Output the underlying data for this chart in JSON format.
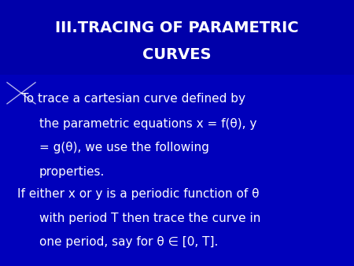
{
  "title_line1": "III.TRACING OF PARAMETRIC",
  "title_line2": "CURVES",
  "body_text1_line1": "To trace a cartesian curve defined by",
  "body_text1_line2": "the parametric equations x = f(θ), y",
  "body_text1_line3": "= g(θ), we use the following",
  "body_text1_line4": "properties.",
  "body_text2_line1": "If either x or y is a periodic function of θ",
  "body_text2_line2": "with period T then trace the curve in",
  "body_text2_line3": "one period, say for θ ∈ [0, T].",
  "bg_color_top": "#0000aa",
  "bg_color_bottom": "#0000cc",
  "bg_gradient_top": "#1010cc",
  "bg_gradient_bottom": "#000099",
  "text_color": "#ffffff",
  "title_fontsize": 14,
  "body_fontsize": 11,
  "figwidth": 4.5,
  "figheight": 3.38,
  "dpi": 100
}
